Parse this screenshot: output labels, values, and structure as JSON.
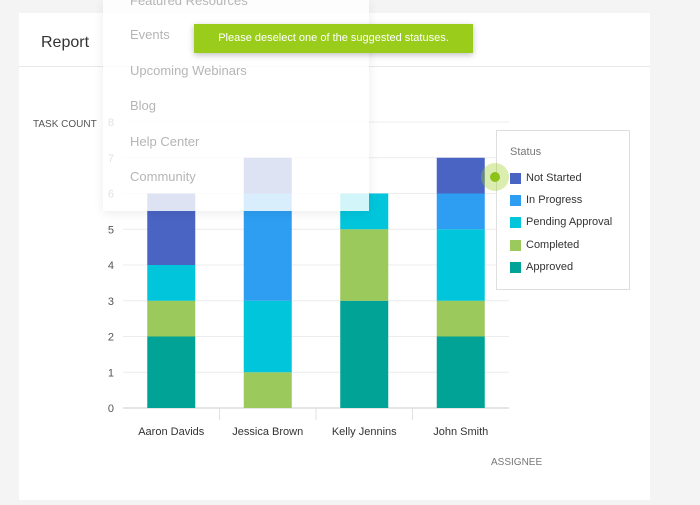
{
  "report": {
    "title": "Report"
  },
  "menu": {
    "items": [
      "Featured Resources",
      "Events",
      "Upcoming Webinars",
      "Blog",
      "Help Center",
      "Community"
    ]
  },
  "toast": {
    "message": "Please deselect one of the suggested statuses."
  },
  "legend": {
    "title": "Status",
    "items": [
      {
        "label": "Not Started",
        "color": "#4a64c4"
      },
      {
        "label": "In Progress",
        "color": "#2d9ef2"
      },
      {
        "label": "Pending Approval",
        "color": "#00c5db"
      },
      {
        "label": "Completed",
        "color": "#9cc95b"
      },
      {
        "label": "Approved",
        "color": "#00a396"
      }
    ]
  },
  "chart_data": {
    "type": "bar",
    "stacked": true,
    "ylabel": "TASK COUNT",
    "xlabel": "ASSIGNEE",
    "ylim": [
      0,
      8
    ],
    "yticks": [
      "0",
      "1",
      "2",
      "3",
      "4",
      "5",
      "6",
      "7",
      "8"
    ],
    "grid": true,
    "legend_position": "right",
    "categories": [
      "Aaron Davids",
      "Jessica Brown",
      "Kelly Jennins",
      "John Smith"
    ],
    "series": [
      {
        "name": "Approved",
        "color": "#00a396",
        "values": [
          2,
          0,
          3,
          2
        ]
      },
      {
        "name": "Completed",
        "color": "#9cc95b",
        "values": [
          1,
          1,
          2,
          1
        ]
      },
      {
        "name": "Pending Approval",
        "color": "#00c5db",
        "values": [
          1,
          2,
          1,
          2
        ]
      },
      {
        "name": "In Progress",
        "color": "#2d9ef2",
        "values": [
          0,
          3,
          0,
          1
        ]
      },
      {
        "name": "Not Started",
        "color": "#4a64c4",
        "values": [
          2,
          1,
          0,
          1
        ]
      }
    ]
  }
}
